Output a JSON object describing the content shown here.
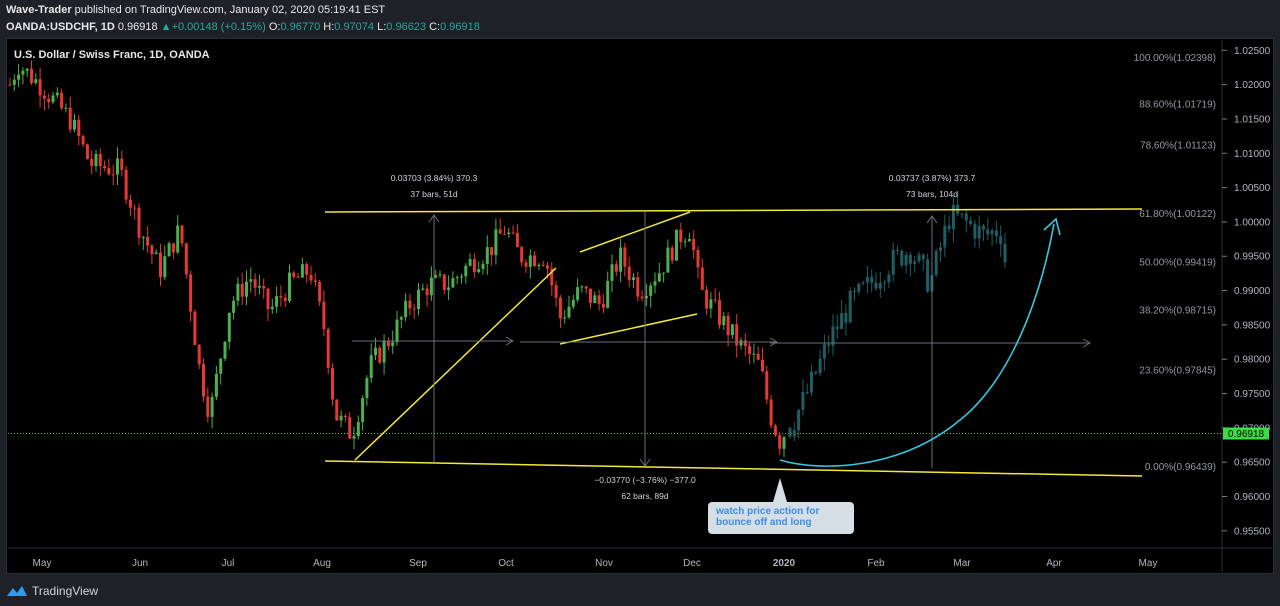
{
  "header": {
    "author": "Wave-Trader",
    "published": " published on TradingView.com, January 02, 2020 05:19:41 EST",
    "symbol": "OANDA:USDCHF, 1D",
    "last": "0.96918",
    "change": "+0.00148 (+0.15%)",
    "o_label": "O:",
    "o": "0.96770",
    "h_label": "H:",
    "h": "0.97074",
    "l_label": "L:",
    "l": "0.96623",
    "c_label": "C:",
    "c": "0.96918"
  },
  "chart_title": "U.S. Dollar / Swiss Franc, 1D, OANDA",
  "footer": {
    "brand": "TradingView",
    "logo_icon": "tradingview-logo-icon"
  },
  "note": {
    "text": "watch price action for bounce off and long"
  },
  "chart_data": {
    "type": "candlestick",
    "ylim": [
      0.9525,
      1.0265
    ],
    "y_ticks": [
      "1.02500",
      "1.02000",
      "1.01500",
      "1.01000",
      "1.00500",
      "1.00000",
      "0.99500",
      "0.99000",
      "0.98500",
      "0.98000",
      "0.97500",
      "0.97000",
      "0.96500",
      "0.96000",
      "0.95500"
    ],
    "x_ticks": [
      "May",
      "Jun",
      "Jul",
      "Aug",
      "Sep",
      "Oct",
      "Nov",
      "Dec",
      "2020",
      "Feb",
      "Mar",
      "Apr",
      "May"
    ],
    "last_price_label": "0.96918",
    "fib_levels": [
      {
        "label": "100.00%(1.02398)",
        "value": 1.02398
      },
      {
        "label": "88.60%(1.01719)",
        "value": 1.01719
      },
      {
        "label": "78.60%(1.01123)",
        "value": 1.01123
      },
      {
        "label": "61.80%(1.00122)",
        "value": 1.00122
      },
      {
        "label": "50.00%(0.99419)",
        "value": 0.99419
      },
      {
        "label": "38.20%(0.98715)",
        "value": 0.98715
      },
      {
        "label": "23.60%(0.97845)",
        "value": 0.97845
      },
      {
        "label": "0.00%(0.96439)",
        "value": 0.96439
      }
    ],
    "measure_labels": [
      {
        "line1": "0.03703 (3.84%) 370.3",
        "line2": "37 bars, 51d"
      },
      {
        "line1": "0.03737 (3.87%) 373.7",
        "line2": "73 bars, 104d"
      },
      {
        "line1": "−0.03770 (−3.76%) −377.0",
        "line2": "62 bars, 89d"
      }
    ],
    "colors": {
      "up": "#4caf50",
      "down": "#e53935",
      "projection": "#1f5f64",
      "trend": "#f2e93a",
      "arrow": "#35c8e0",
      "price": "#3ddc47"
    }
  }
}
